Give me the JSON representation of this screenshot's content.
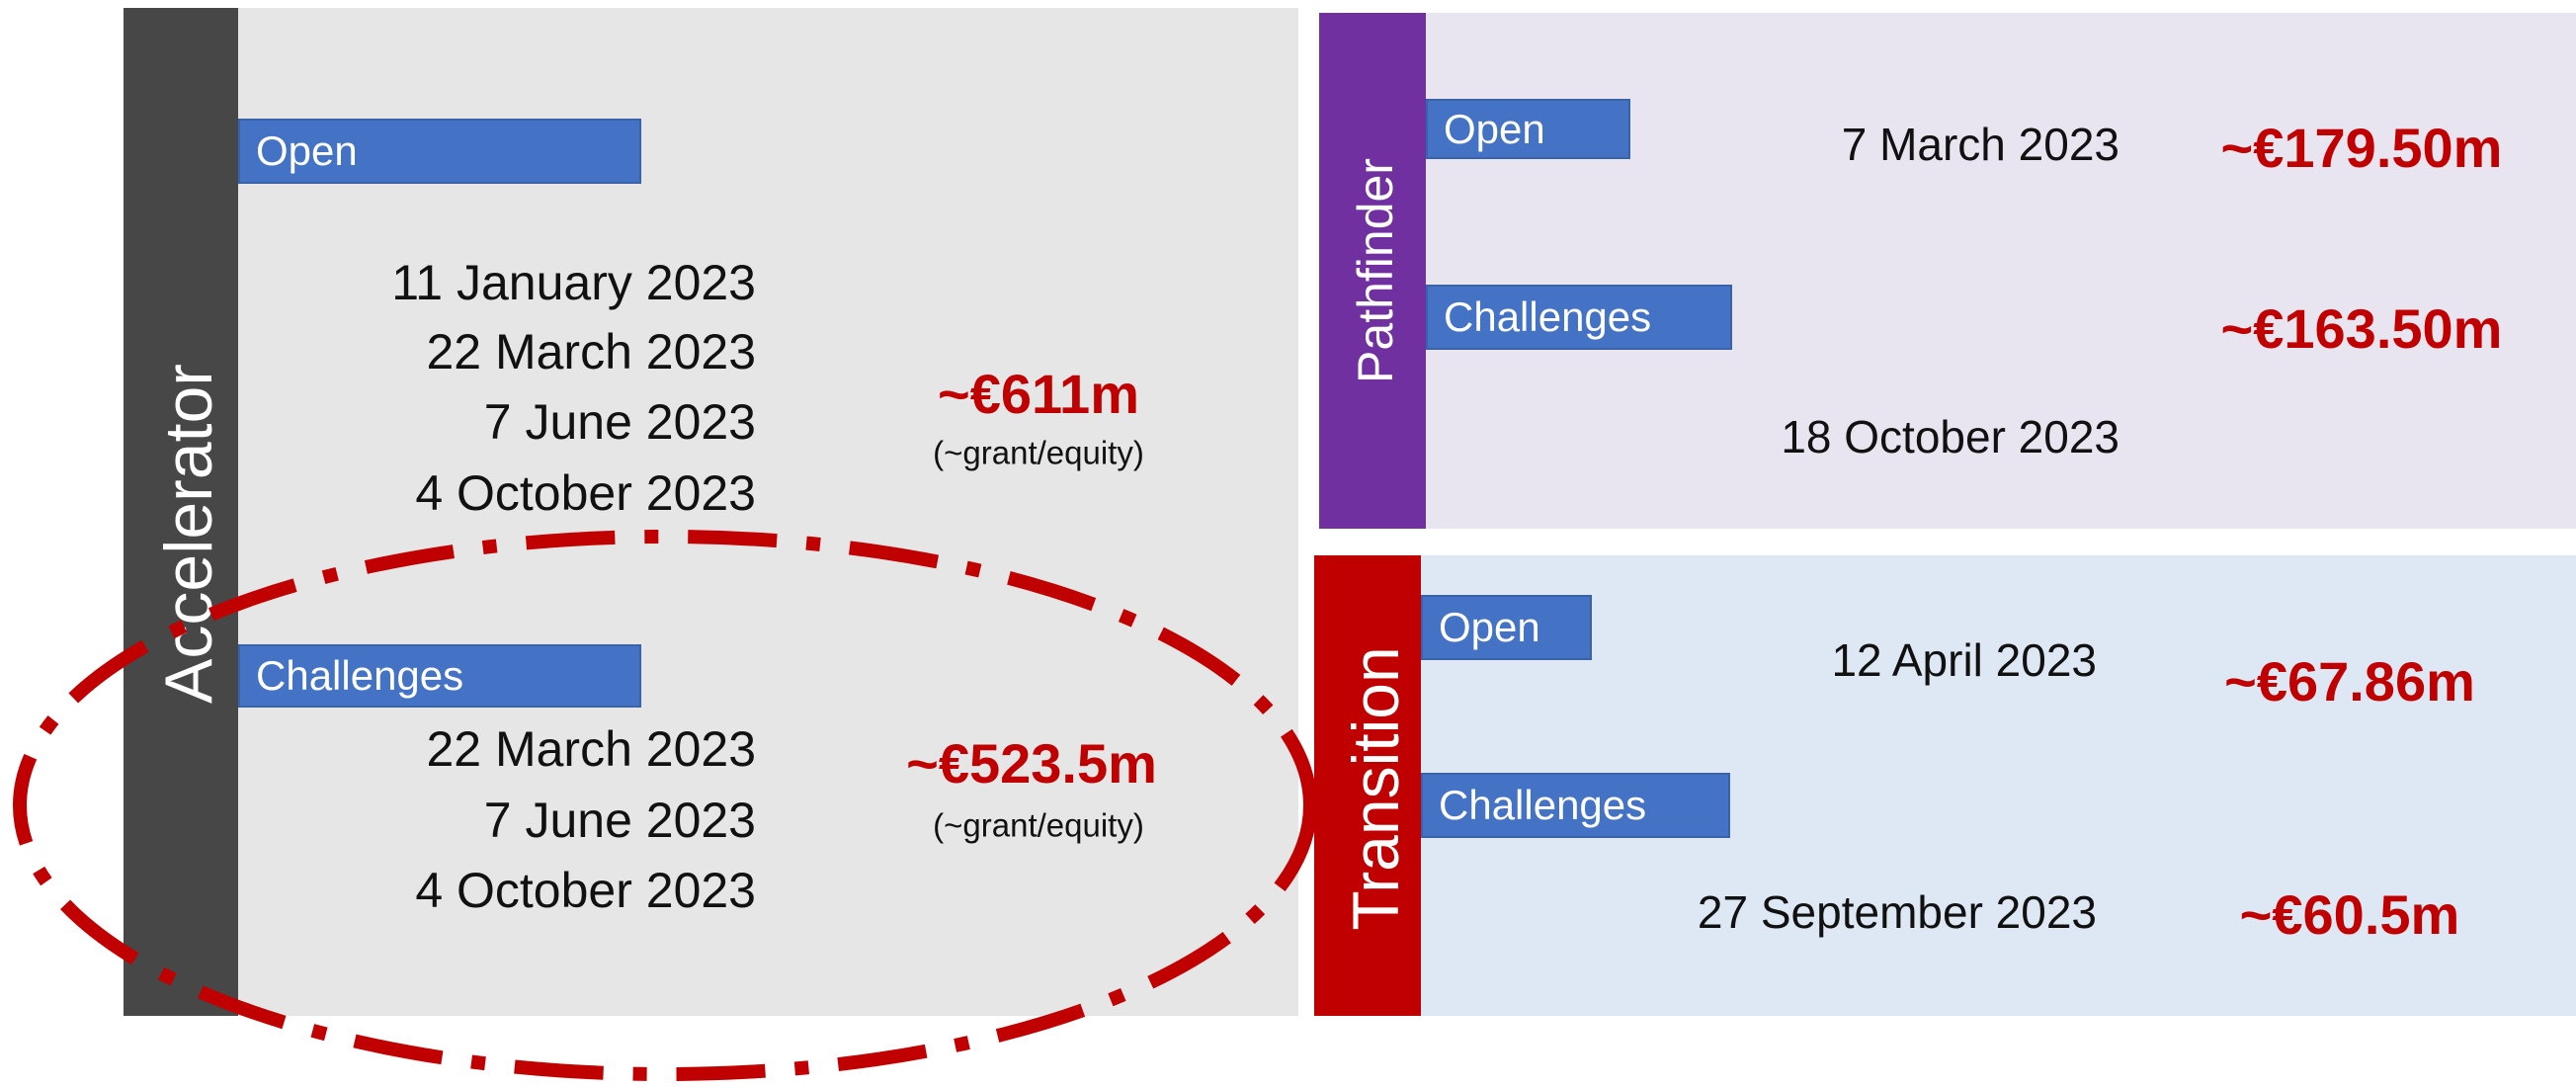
{
  "panels": [
    {
      "title": "Accelerator",
      "sections": [
        {
          "label": "Open",
          "dates": [
            "11 January 2023",
            "22 March 2023",
            "7 June 2023",
            "4 October 2023"
          ],
          "amount": "~€611m",
          "note": "(~grant/equity)"
        },
        {
          "label": "Challenges",
          "dates": [
            "22 March 2023",
            "7 June 2023",
            "4 October 2023"
          ],
          "amount": "~€523.5m",
          "note": "(~grant/equity)"
        }
      ]
    },
    {
      "title": "Pathfinder",
      "sections": [
        {
          "label": "Open",
          "dates": [
            "7 March 2023"
          ],
          "amount": "~€179.50m"
        },
        {
          "label": "Challenges",
          "dates": [
            "18 October 2023"
          ],
          "amount": "~€163.50m"
        }
      ]
    },
    {
      "title": "Transition",
      "sections": [
        {
          "label": "Open",
          "dates": [
            "12 April 2023"
          ],
          "amount": "~€67.86m"
        },
        {
          "label": "Challenges",
          "dates": [
            "27 September 2023"
          ],
          "amount": "~€60.5m"
        }
      ]
    }
  ]
}
